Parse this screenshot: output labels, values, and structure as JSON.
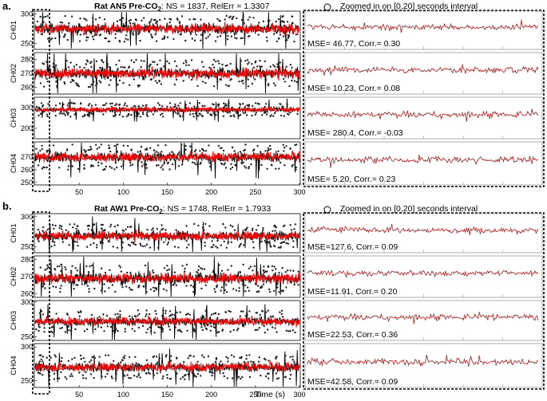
{
  "chart_data": {
    "type": "line",
    "xlabel": "Time (s)",
    "x_ticks": [
      50,
      100,
      150,
      200,
      250,
      300
    ],
    "xlim": [
      0,
      300
    ],
    "zoom_xlim": [
      0,
      20
    ],
    "colors": {
      "recorded": "#000000",
      "reconstructed": "#ff0000"
    },
    "panels": [
      {
        "label": "a.",
        "title_bold": "Rat AN5 Pre-CO",
        "title_sub": "2",
        "title_rest": ": NS = 1837, RelErr = 1.3307",
        "zoom_title": "Zoomed in on [0,20] seconds interval",
        "channels": [
          {
            "name": "CH01",
            "ylim": [
              240,
              305
            ],
            "ticks": [
              250,
              300
            ],
            "center": 275,
            "amp": 11,
            "zoom_stat": "MSE= 46.77, Corr.= 0.30"
          },
          {
            "name": "CH02",
            "ylim": [
              255,
              285
            ],
            "ticks": [
              260,
              270,
              280
            ],
            "center": 270,
            "amp": 5,
            "zoom_stat": "MSE= 10.23, Corr.= 0.08"
          },
          {
            "name": "CH03",
            "ylim": [
              150,
              350
            ],
            "ticks": [
              200,
              300
            ],
            "center": 290,
            "amp": 17,
            "zoom_stat": "MSE= 280.4, Corr.= -0.03"
          },
          {
            "name": "CH04",
            "ylim": [
              248,
              282
            ],
            "ticks": [
              250,
              260,
              270
            ],
            "center": 270,
            "amp": 5,
            "zoom_stat": "MSE= 5.20, Corr.= 0.23"
          }
        ]
      },
      {
        "label": "b.",
        "title_bold": "Rat AW1 Pre-CO",
        "title_sub": "2",
        "title_rest": ": NS = 1748, RelErr = 1.7933",
        "zoom_title": "Zoomed in on [0,20] seconds interval",
        "channels": [
          {
            "name": "CH01",
            "ylim": [
              240,
              305
            ],
            "ticks": [
              250,
              300
            ],
            "center": 268,
            "amp": 10,
            "zoom_stat": "MSE=127.6, Corr.= 0.09"
          },
          {
            "name": "CH02",
            "ylim": [
              258,
              282
            ],
            "ticks": [
              260,
              270,
              280
            ],
            "center": 269,
            "amp": 4,
            "zoom_stat": "MSE=11.91, Corr.= 0.20"
          },
          {
            "name": "CH03",
            "ylim": [
              245,
              302
            ],
            "ticks": [
              250,
              300
            ],
            "center": 272,
            "amp": 8,
            "zoom_stat": "MSE=22.53, Corr.= 0.36"
          },
          {
            "name": "CH04",
            "ylim": [
              240,
              305
            ],
            "ticks": [
              250,
              300
            ],
            "center": 270,
            "amp": 9,
            "zoom_stat": "MSE=42.58, Corr.= 0.09"
          }
        ]
      }
    ]
  }
}
